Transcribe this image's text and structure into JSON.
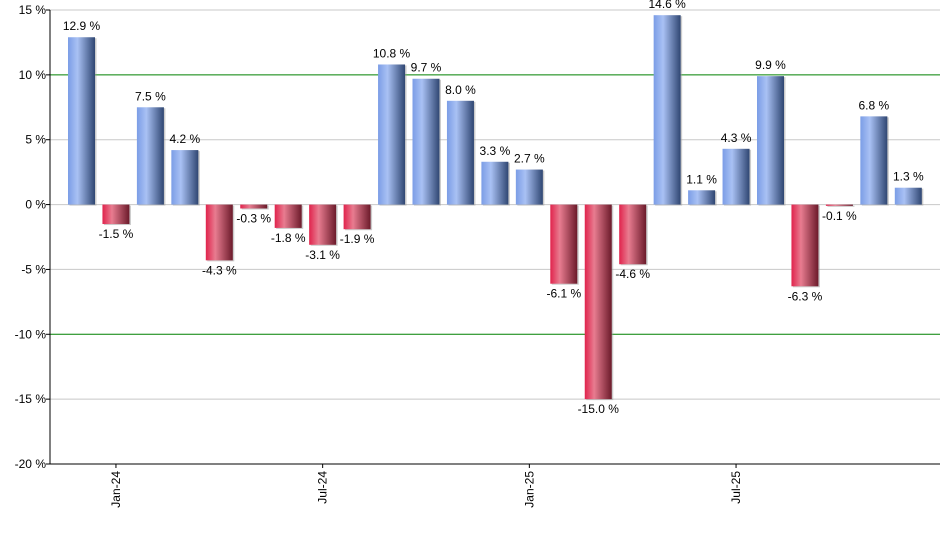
{
  "chart_data": {
    "type": "bar",
    "categories": [
      "Dec-23",
      "Jan-24",
      "Feb-24",
      "Mar-24",
      "Apr-24",
      "May-24",
      "Jun-24",
      "Jul-24",
      "Aug-24",
      "Sep-24",
      "Oct-24",
      "Nov-24",
      "Dec-24",
      "Jan-25",
      "Feb-25",
      "Mar-25",
      "Apr-25",
      "May-25",
      "Jun-25",
      "Jul-25",
      "Aug-25",
      "Sep-25",
      "Oct-25",
      "Nov-25",
      "Dec-25"
    ],
    "values": [
      12.9,
      -1.5,
      7.5,
      4.2,
      -4.3,
      -0.3,
      -1.8,
      -3.1,
      -1.9,
      10.8,
      9.7,
      8.0,
      3.3,
      2.7,
      -6.1,
      -15.0,
      -4.6,
      14.6,
      1.1,
      4.3,
      9.9,
      -6.3,
      -0.1,
      6.8,
      1.3
    ],
    "data_labels": [
      "12.9 %",
      "-1.5 %",
      "7.5 %",
      "4.2 %",
      "-4.3 %",
      "-0.3 %",
      "-1.8 %",
      "-3.1 %",
      "-1.9 %",
      "10.8 %",
      "9.7 %",
      "8.0 %",
      "3.3 %",
      "2.7 %",
      "-6.1 %",
      "-15.0 %",
      "-4.6 %",
      "14.6 %",
      "1.1 %",
      "4.3 %",
      "9.9 %",
      "-6.3 %",
      "-0.1 %",
      "6.8 %",
      "1.3 %"
    ],
    "x_tick_labels": [
      {
        "label": "Jan-24",
        "category": "Jan-24"
      },
      {
        "label": "Jul-24",
        "category": "Jul-24"
      },
      {
        "label": "Jan-25",
        "category": "Jan-25"
      },
      {
        "label": "Jul-25",
        "category": "Jul-25"
      }
    ],
    "y_ticks": [
      15,
      10,
      5,
      0,
      -5,
      -10,
      -15,
      -20
    ],
    "y_tick_labels": [
      "15 %",
      "10 %",
      "5 %",
      "0 %",
      "-5 %",
      "-10 %",
      "-15 %",
      "-20 %"
    ],
    "ylim": [
      -20,
      15
    ],
    "reference_lines": [
      10,
      -10
    ],
    "grid": true,
    "legend": "none",
    "colors": {
      "positive": "#7b9de6",
      "positive_dark": "#2f4672",
      "negative": "#e0234c",
      "negative_dark": "#6b1a2a",
      "reference_line": "#008000",
      "grid": "#c8c8c8"
    },
    "title": "",
    "xlabel": "",
    "ylabel": ""
  }
}
